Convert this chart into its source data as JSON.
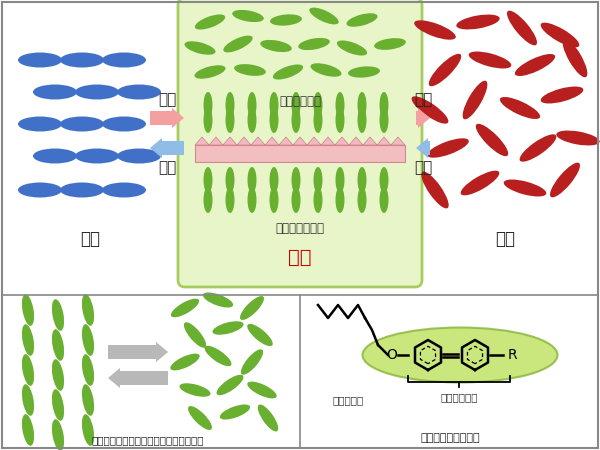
{
  "bg_color": "#ffffff",
  "lc_box_color": "#e8f5c8",
  "lc_box_edge": "#a8cc60",
  "crystal_color": "#4070c8",
  "liquid_color": "#b82020",
  "lc_green": "#6ab030",
  "arrow_heat_color": "#f4a0a0",
  "arrow_cool_color": "#90bce8",
  "gray_arrow": "#b8b8b8",
  "smectic_pink": "#f4b8c0",
  "mesogen_green_fill": "#b8e050",
  "mesogen_green_edge": "#80b030",
  "label_crystal": "結晶",
  "label_liquid": "液体",
  "label_nematic": "ネマチック相",
  "label_smectic": "スメクチック相",
  "label_lc": "液晶",
  "label_heat1": "加熱",
  "label_cool1": "冷却",
  "label_heat2": "加熱",
  "label_cool2": "冷却",
  "label_switching": "ネマチック液晶分子のスイッチングの例",
  "label_rod_mol": "棒状液晶性分子の例",
  "label_flexible": "柔軟性部位",
  "label_mesogen": "メソゲン部位",
  "border_color": "#888888",
  "text_color": "#222222"
}
